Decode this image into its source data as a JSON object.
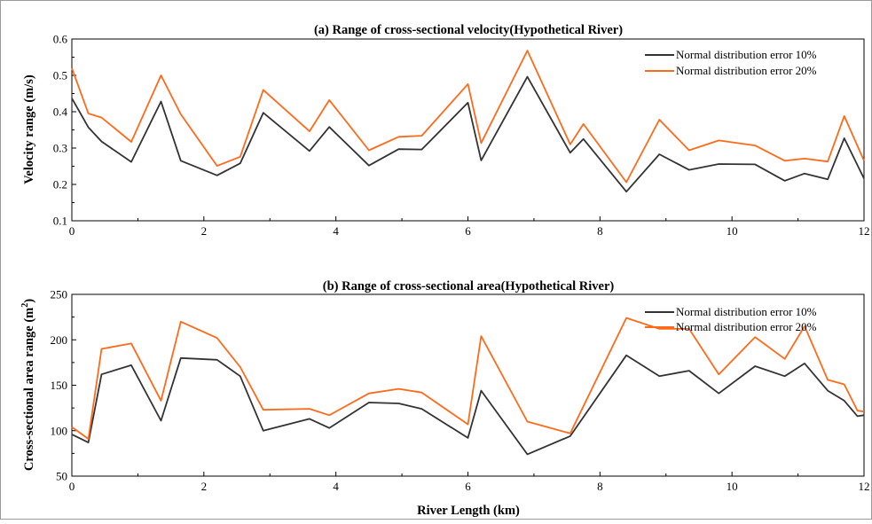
{
  "chart_data": [
    {
      "type": "line",
      "title": "(a) Range of cross-sectional velocity(Hypothetical River)",
      "xlabel": "",
      "ylabel": "Velocity range (m/s)",
      "xlim": [
        0,
        12
      ],
      "ylim": [
        0.1,
        0.6
      ],
      "xticks": [
        "0",
        "2",
        "4",
        "6",
        "8",
        "10",
        "12"
      ],
      "yticks": [
        "0.1",
        "0.2",
        "0.3",
        "0.4",
        "0.5",
        "0.6"
      ],
      "xtick_values": [
        0,
        2,
        4,
        6,
        8,
        10,
        12
      ],
      "ytick_values": [
        0.1,
        0.2,
        0.3,
        0.4,
        0.5,
        0.6
      ],
      "legend_position": "top-right",
      "grid": false,
      "x": [
        0,
        0.25,
        0.45,
        0.9,
        1.35,
        1.65,
        2.2,
        2.55,
        2.9,
        3.6,
        3.9,
        4.5,
        4.95,
        5.3,
        6.0,
        6.2,
        6.9,
        7.55,
        7.75,
        8.4,
        8.9,
        9.35,
        9.8,
        10.35,
        10.8,
        11.1,
        11.45,
        11.7,
        12.0
      ],
      "series": [
        {
          "name": "Normal distribution error 10%",
          "color": "#333333",
          "values": [
            0.437,
            0.357,
            0.318,
            0.262,
            0.428,
            0.265,
            0.225,
            0.258,
            0.397,
            0.292,
            0.358,
            0.252,
            0.297,
            0.296,
            0.425,
            0.266,
            0.496,
            0.287,
            0.325,
            0.18,
            0.283,
            0.24,
            0.256,
            0.255,
            0.21,
            0.23,
            0.214,
            0.327,
            0.216
          ]
        },
        {
          "name": "Normal distribution error 20%",
          "color": "#ff6a1a",
          "values": [
            0.52,
            0.395,
            0.384,
            0.317,
            0.5,
            0.393,
            0.251,
            0.276,
            0.46,
            0.346,
            0.432,
            0.294,
            0.331,
            0.334,
            0.476,
            0.314,
            0.568,
            0.31,
            0.366,
            0.206,
            0.378,
            0.294,
            0.321,
            0.307,
            0.265,
            0.271,
            0.263,
            0.388,
            0.265
          ]
        }
      ]
    },
    {
      "type": "line",
      "title": "(b) Range of cross-sectional area(Hypothetical River)",
      "xlabel": "River Length (km)",
      "ylabel": "Cross-sectional area range (m",
      "ylabel_sup": "2",
      "ylabel_end": ")",
      "xlim": [
        0,
        12
      ],
      "ylim": [
        50,
        250
      ],
      "xticks": [
        "0",
        "2",
        "4",
        "6",
        "8",
        "10",
        "12"
      ],
      "yticks": [
        "50",
        "100",
        "150",
        "200",
        "250"
      ],
      "xtick_values": [
        0,
        2,
        4,
        6,
        8,
        10,
        12
      ],
      "ytick_values": [
        50,
        100,
        150,
        200,
        250
      ],
      "legend_position": "top-right",
      "grid": false,
      "x": [
        0,
        0.25,
        0.45,
        0.9,
        1.35,
        1.65,
        2.2,
        2.55,
        2.9,
        3.6,
        3.9,
        4.5,
        4.95,
        5.3,
        6.0,
        6.2,
        6.9,
        7.55,
        8.4,
        8.9,
        9.35,
        9.8,
        10.35,
        10.8,
        11.1,
        11.45,
        11.7,
        11.9,
        12.0
      ],
      "series": [
        {
          "name": "Normal distribution error 10%",
          "color": "#333333",
          "values": [
            96,
            87,
            162,
            172,
            111,
            180,
            178,
            160,
            100,
            113,
            103,
            131,
            130,
            124,
            92,
            144,
            74,
            94,
            183,
            160,
            166,
            141,
            171,
            160,
            174,
            144,
            133,
            116,
            117
          ]
        },
        {
          "name": "Normal distribution error 20%",
          "color": "#ff6a1a",
          "values": [
            104,
            91,
            190,
            196,
            133,
            220,
            202,
            170,
            123,
            124,
            117,
            141,
            146,
            142,
            107,
            204,
            110,
            97,
            224,
            212,
            212,
            162,
            203,
            179,
            215,
            156,
            151,
            122,
            121
          ]
        }
      ]
    }
  ]
}
